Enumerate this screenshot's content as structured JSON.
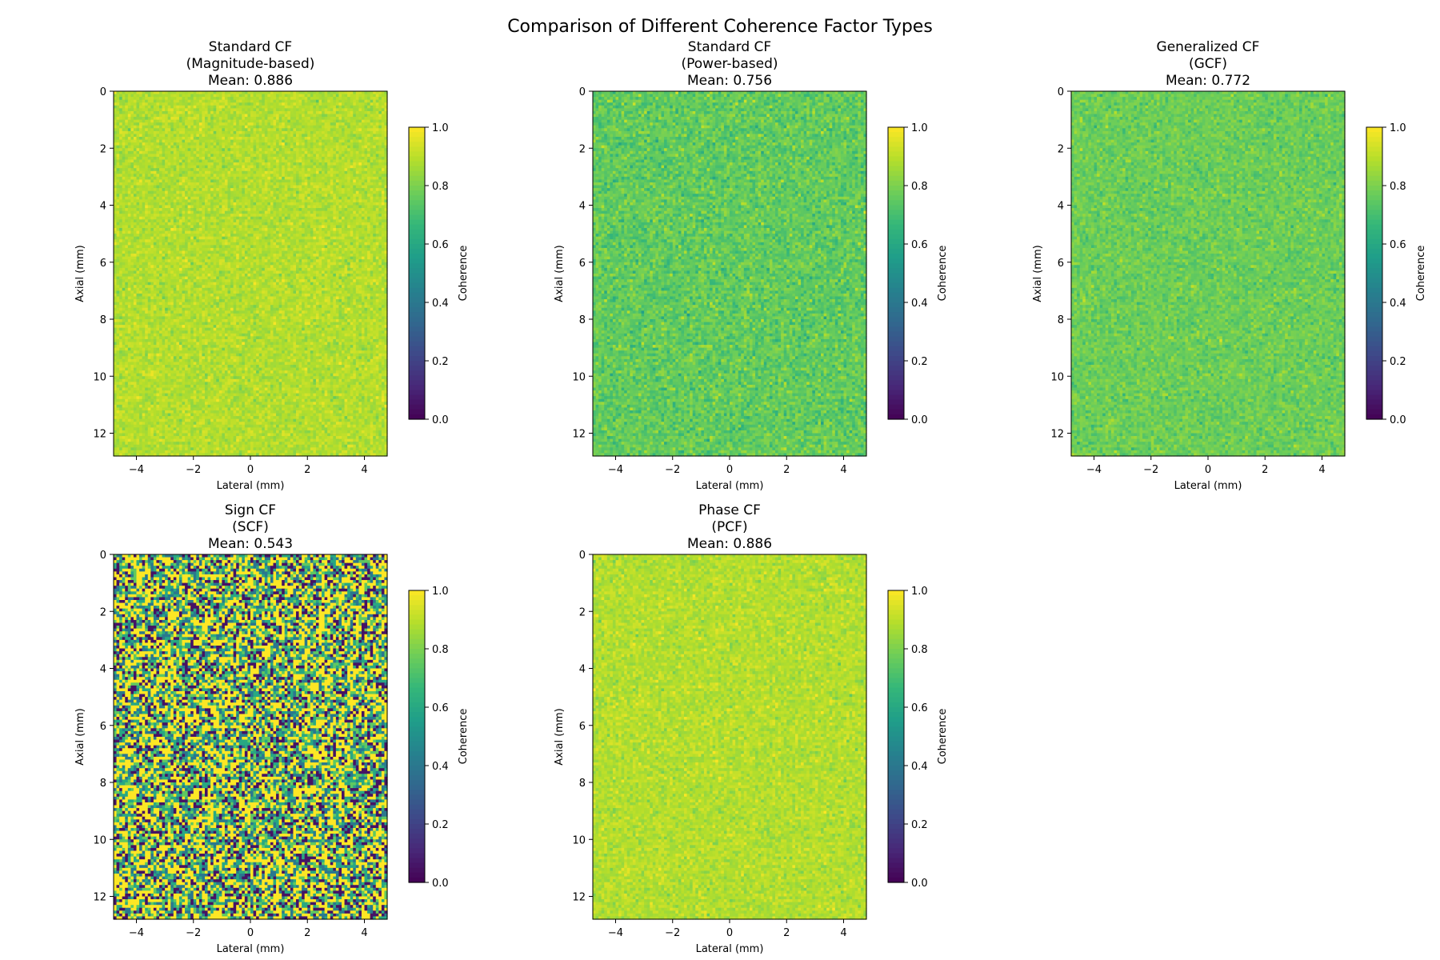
{
  "figure": {
    "suptitle": "Comparison of Different Coherence Factor Types"
  },
  "colormap": {
    "name": "viridis",
    "stops": [
      "#440154",
      "#482878",
      "#3e4989",
      "#31688e",
      "#26828e",
      "#1f9e89",
      "#35b779",
      "#6ece58",
      "#b5de2b",
      "#fde725"
    ]
  },
  "chart_data": [
    {
      "type": "heatmap",
      "title": [
        "Standard CF",
        "(Magnitude-based)",
        "Mean: 0.886"
      ],
      "xlabel": "Lateral (mm)",
      "ylabel": "Axial (mm)",
      "xlim": [
        -4.8,
        4.8
      ],
      "ylim": [
        12.8,
        0
      ],
      "xticks": [
        -4,
        -2,
        0,
        2,
        4
      ],
      "yticks": [
        0,
        2,
        4,
        6,
        8,
        10,
        12
      ],
      "colorbar": {
        "label": "Coherence",
        "range": [
          0,
          1
        ],
        "ticks": [
          "0.0",
          "0.2",
          "0.4",
          "0.6",
          "0.8",
          "1.0"
        ]
      },
      "pattern": {
        "mean": 0.886,
        "spread": 0.035,
        "style": "noise"
      },
      "grid": false
    },
    {
      "type": "heatmap",
      "title": [
        "Standard CF",
        "(Power-based)",
        "Mean: 0.756"
      ],
      "xlabel": "Lateral (mm)",
      "ylabel": "Axial (mm)",
      "xlim": [
        -4.8,
        4.8
      ],
      "ylim": [
        12.8,
        0
      ],
      "xticks": [
        -4,
        -2,
        0,
        2,
        4
      ],
      "yticks": [
        0,
        2,
        4,
        6,
        8,
        10,
        12
      ],
      "colorbar": {
        "label": "Coherence",
        "range": [
          0,
          1
        ],
        "ticks": [
          "0.0",
          "0.2",
          "0.4",
          "0.6",
          "0.8",
          "1.0"
        ]
      },
      "pattern": {
        "mean": 0.756,
        "spread": 0.05,
        "style": "noise"
      },
      "grid": false
    },
    {
      "type": "heatmap",
      "title": [
        "Generalized CF",
        "(GCF)",
        "Mean: 0.772"
      ],
      "xlabel": "Lateral (mm)",
      "ylabel": "Axial (mm)",
      "xlim": [
        -4.8,
        4.8
      ],
      "ylim": [
        12.8,
        0
      ],
      "xticks": [
        -4,
        -2,
        0,
        2,
        4
      ],
      "yticks": [
        0,
        2,
        4,
        6,
        8,
        10,
        12
      ],
      "colorbar": {
        "label": "Coherence",
        "range": [
          0,
          1
        ],
        "ticks": [
          "0.0",
          "0.2",
          "0.4",
          "0.6",
          "0.8",
          "1.0"
        ]
      },
      "pattern": {
        "mean": 0.772,
        "spread": 0.04,
        "style": "noise"
      },
      "grid": false
    },
    {
      "type": "heatmap",
      "title": [
        "Sign CF",
        "(SCF)",
        "Mean: 0.543"
      ],
      "xlabel": "Lateral (mm)",
      "ylabel": "Axial (mm)",
      "xlim": [
        -4.8,
        4.8
      ],
      "ylim": [
        12.8,
        0
      ],
      "xticks": [
        -4,
        -2,
        0,
        2,
        4
      ],
      "yticks": [
        0,
        2,
        4,
        6,
        8,
        10,
        12
      ],
      "colorbar": {
        "label": "Coherence",
        "range": [
          0,
          1
        ],
        "ticks": [
          "0.0",
          "0.2",
          "0.4",
          "0.6",
          "0.8",
          "1.0"
        ]
      },
      "pattern": {
        "mean": 0.543,
        "levels": [
          0.0,
          0.25,
          0.5,
          0.75,
          1.0
        ],
        "style": "discrete"
      },
      "grid": false
    },
    {
      "type": "heatmap",
      "title": [
        "Phase CF",
        "(PCF)",
        "Mean: 0.886"
      ],
      "xlabel": "Lateral (mm)",
      "ylabel": "Axial (mm)",
      "xlim": [
        -4.8,
        4.8
      ],
      "ylim": [
        12.8,
        0
      ],
      "xticks": [
        -4,
        -2,
        0,
        2,
        4
      ],
      "yticks": [
        0,
        2,
        4,
        6,
        8,
        10,
        12
      ],
      "colorbar": {
        "label": "Coherence",
        "range": [
          0,
          1
        ],
        "ticks": [
          "0.0",
          "0.2",
          "0.4",
          "0.6",
          "0.8",
          "1.0"
        ]
      },
      "pattern": {
        "mean": 0.886,
        "spread": 0.035,
        "style": "noise"
      },
      "grid": false
    }
  ]
}
